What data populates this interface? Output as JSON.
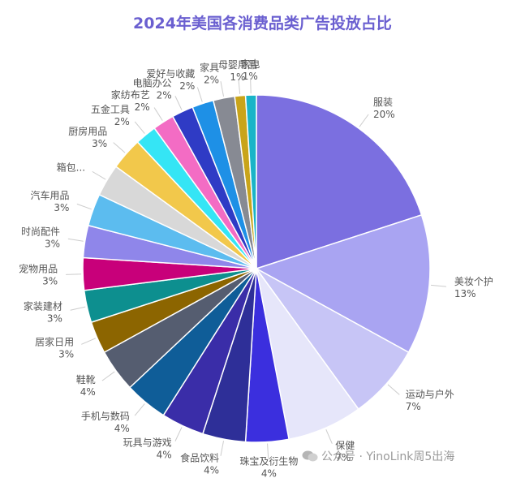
{
  "chart_data": {
    "type": "pie",
    "title": "2024年美国各消费品类广告投放占比",
    "slices": [
      {
        "label": "服装",
        "value": 20,
        "display": "20%",
        "color": "#7b6fe0"
      },
      {
        "label": "美妆个护",
        "value": 13,
        "display": "13%",
        "color": "#a9a4f2"
      },
      {
        "label": "运动与户外",
        "value": 7,
        "display": "7%",
        "color": "#c7c5f6"
      },
      {
        "label": "保健",
        "value": 7,
        "display": "7%",
        "color": "#e6e6fa"
      },
      {
        "label": "珠宝及衍生物",
        "value": 4,
        "display": "4%",
        "color": "#3b2fde"
      },
      {
        "label": "食品饮料",
        "value": 4,
        "display": "4%",
        "color": "#2e2f98"
      },
      {
        "label": "玩具与游戏",
        "value": 4,
        "display": "4%",
        "color": "#3a2da8"
      },
      {
        "label": "手机与数码",
        "value": 4,
        "display": "4%",
        "color": "#0f5d98"
      },
      {
        "label": "鞋靴",
        "value": 4,
        "display": "4%",
        "color": "#555d70"
      },
      {
        "label": "居家日用",
        "value": 3,
        "display": "3%",
        "color": "#8c6500"
      },
      {
        "label": "家装建材",
        "value": 3,
        "display": "3%",
        "color": "#0d8f8f"
      },
      {
        "label": "宠物用品",
        "value": 3,
        "display": "3%",
        "color": "#c8007a"
      },
      {
        "label": "时尚配件",
        "value": 3,
        "display": "3%",
        "color": "#8f86ea"
      },
      {
        "label": "汽车用品",
        "value": 3,
        "display": "3%",
        "color": "#5cbcef"
      },
      {
        "label": "箱包...",
        "value": 3,
        "display": "",
        "color": "#d8d8d8"
      },
      {
        "label": "厨房用品",
        "value": 3,
        "display": "3%",
        "color": "#f2c84b"
      },
      {
        "label": "五金工具",
        "value": 2,
        "display": "2%",
        "color": "#35e5f5"
      },
      {
        "label": "家纺布艺",
        "value": 2,
        "display": "2%",
        "color": "#f36cc4"
      },
      {
        "label": "电脑办公",
        "value": 2,
        "display": "2%",
        "color": "#2f3bc5"
      },
      {
        "label": "爱好与收藏",
        "value": 2,
        "display": "2%",
        "color": "#1e90e6"
      },
      {
        "label": "家具",
        "value": 2,
        "display": "2%",
        "color": "#878a93"
      },
      {
        "label": "母婴用品",
        "value": 1,
        "display": "1%",
        "color": "#c9a41a"
      },
      {
        "label": "家电",
        "value": 1,
        "display": "1%",
        "color": "#19b4c8"
      }
    ]
  },
  "watermark": "公众号 · YinoLink周5出海"
}
